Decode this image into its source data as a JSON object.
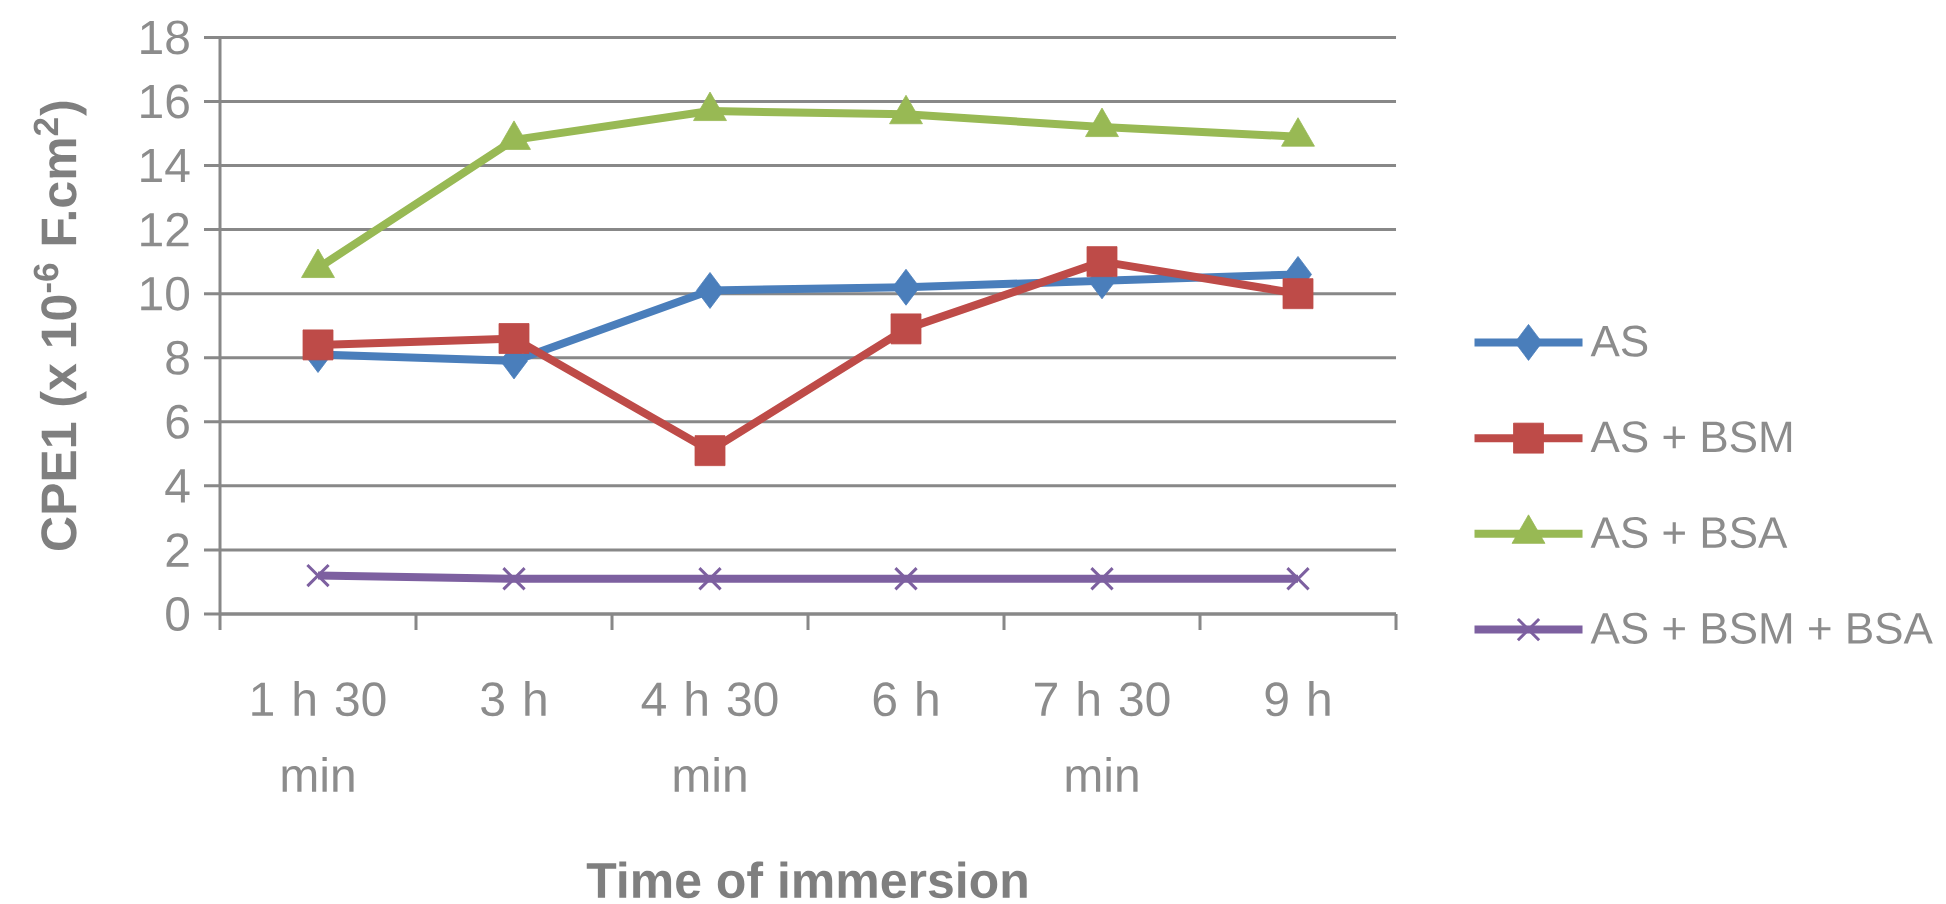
{
  "chart_data": {
    "type": "line",
    "xlabel": "Time of immersion",
    "ylabel": "CPE1 (x 10$^{-6}$ F.cm$^{2}$)",
    "categories": [
      "1 h 30 min",
      "3 h",
      "4 h 30 min",
      "6 h",
      "7 h 30 min",
      "9 h"
    ],
    "series": [
      {
        "name": "AS",
        "color": "#4a7ebb",
        "marker": "diamond",
        "values": [
          8.1,
          7.9,
          10.1,
          10.2,
          10.4,
          10.6
        ]
      },
      {
        "name": "AS + BSM",
        "color": "#be4b48",
        "marker": "square",
        "values": [
          8.4,
          8.6,
          5.1,
          8.9,
          11.0,
          10.0
        ]
      },
      {
        "name": "AS + BSA",
        "color": "#98b954",
        "marker": "triangle",
        "values": [
          10.8,
          14.8,
          15.7,
          15.6,
          15.2,
          14.9
        ]
      },
      {
        "name": "AS + BSM + BSA",
        "color": "#7d60a0",
        "marker": "cross",
        "values": [
          1.2,
          1.1,
          1.1,
          1.1,
          1.1,
          1.1
        ]
      }
    ],
    "ylim": [
      0,
      18
    ],
    "yticks": [
      0,
      2,
      4,
      6,
      8,
      10,
      12,
      14,
      16,
      18
    ],
    "grid": "y",
    "legend": "right"
  }
}
